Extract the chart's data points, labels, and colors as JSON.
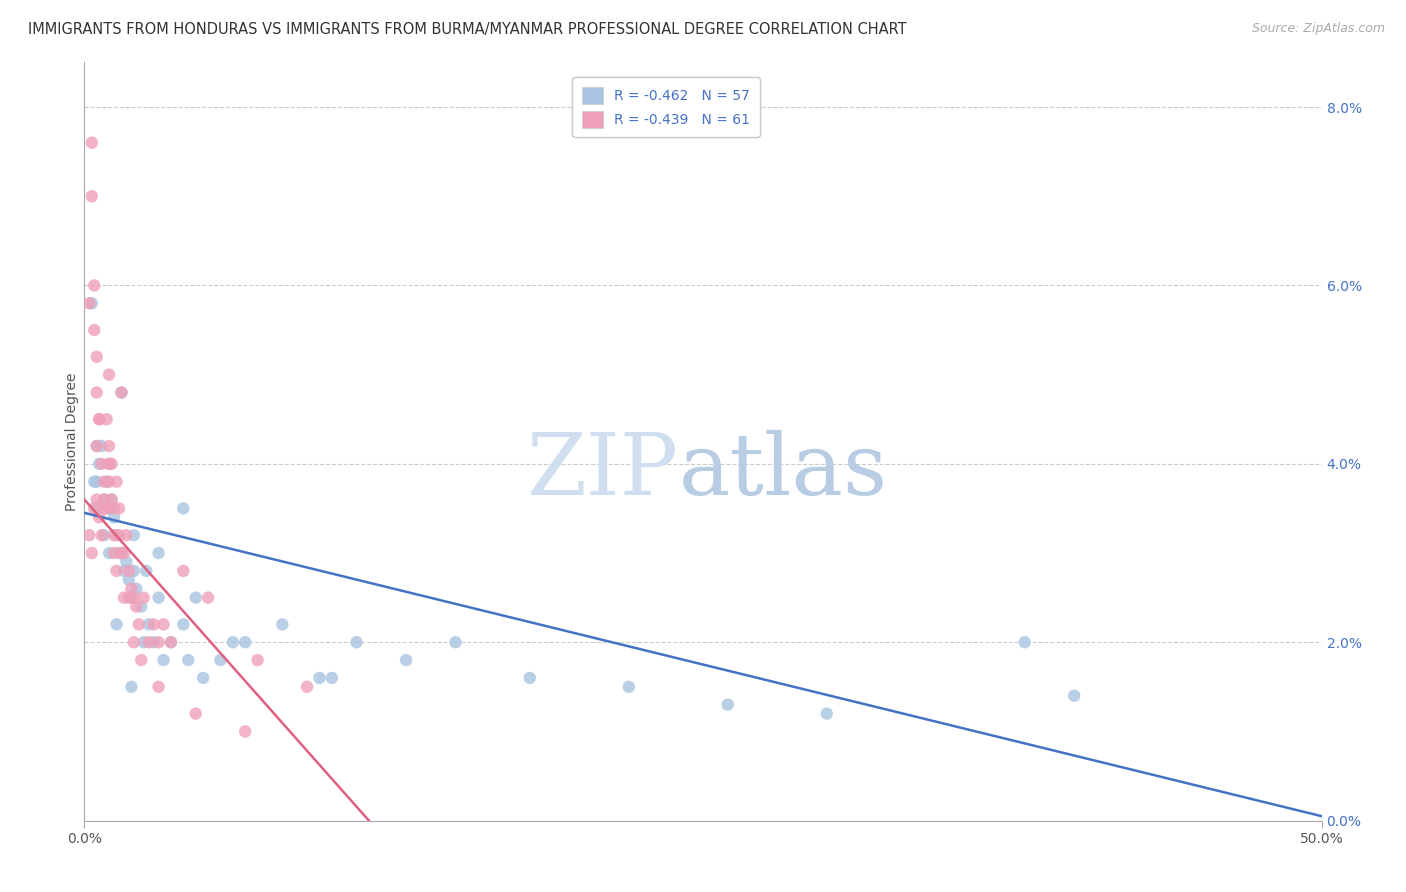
{
  "title": "IMMIGRANTS FROM HONDURAS VS IMMIGRANTS FROM BURMA/MYANMAR PROFESSIONAL DEGREE CORRELATION CHART",
  "source": "Source: ZipAtlas.com",
  "ylabel": "Professional Degree",
  "right_yticks": [
    "0.0%",
    "2.0%",
    "4.0%",
    "6.0%",
    "8.0%"
  ],
  "right_ytick_vals": [
    0.0,
    2.0,
    4.0,
    6.0,
    8.0
  ],
  "legend_blue_r": "R = -0.462",
  "legend_blue_n": "N = 57",
  "legend_pink_r": "R = -0.439",
  "legend_pink_n": "N = 61",
  "blue_color": "#a8c4e0",
  "pink_color": "#f0a0b8",
  "blue_line_color": "#4472c4",
  "pink_line_color": "#e06080",
  "legend_text_color": "#4472c4",
  "right_axis_color": "#4472c4",
  "background_color": "#ffffff",
  "watermark_zip_color": "#d0dff0",
  "watermark_atlas_color": "#b8cce4",
  "xlim": [
    0.0,
    50.0
  ],
  "ylim": [
    0.0,
    8.5
  ],
  "blue_scatter_x": [
    0.5,
    0.5,
    0.5,
    0.6,
    0.7,
    0.8,
    0.8,
    0.9,
    1.0,
    1.0,
    1.0,
    1.1,
    1.2,
    1.3,
    1.4,
    1.5,
    1.5,
    1.6,
    1.7,
    1.8,
    1.9,
    2.0,
    2.0,
    2.1,
    2.3,
    2.5,
    2.6,
    2.8,
    3.0,
    3.2,
    3.5,
    4.0,
    4.2,
    4.5,
    4.8,
    5.5,
    6.5,
    8.0,
    9.5,
    11.0,
    13.0,
    15.0,
    18.0,
    22.0,
    26.0,
    30.0,
    38.0,
    0.3,
    0.4,
    1.3,
    1.9,
    2.4,
    3.0,
    4.0,
    6.0,
    10.0,
    40.0
  ],
  "blue_scatter_y": [
    4.2,
    3.8,
    3.5,
    4.0,
    4.2,
    3.6,
    3.2,
    3.8,
    4.0,
    3.5,
    3.0,
    3.6,
    3.4,
    3.2,
    3.0,
    4.8,
    3.0,
    2.8,
    2.9,
    2.7,
    2.5,
    3.2,
    2.8,
    2.6,
    2.4,
    2.8,
    2.2,
    2.0,
    2.5,
    1.8,
    2.0,
    2.2,
    1.8,
    2.5,
    1.6,
    1.8,
    2.0,
    2.2,
    1.6,
    2.0,
    1.8,
    2.0,
    1.6,
    1.5,
    1.3,
    1.2,
    2.0,
    5.8,
    3.8,
    2.2,
    1.5,
    2.0,
    3.0,
    3.5,
    2.0,
    1.6,
    1.4
  ],
  "pink_scatter_x": [
    0.2,
    0.3,
    0.3,
    0.4,
    0.4,
    0.5,
    0.5,
    0.5,
    0.6,
    0.6,
    0.7,
    0.7,
    0.8,
    0.8,
    0.9,
    0.9,
    1.0,
    1.0,
    1.0,
    1.1,
    1.1,
    1.2,
    1.2,
    1.3,
    1.3,
    1.4,
    1.5,
    1.5,
    1.6,
    1.7,
    1.8,
    1.9,
    2.0,
    2.1,
    2.2,
    2.4,
    2.6,
    2.8,
    3.0,
    3.2,
    3.5,
    4.0,
    5.0,
    7.0,
    9.0,
    0.2,
    0.3,
    0.4,
    0.5,
    0.6,
    0.8,
    1.0,
    1.2,
    1.4,
    1.6,
    1.8,
    2.0,
    2.3,
    3.0,
    4.5,
    6.5
  ],
  "pink_scatter_y": [
    5.8,
    7.6,
    7.0,
    6.0,
    5.5,
    5.2,
    4.8,
    3.6,
    4.5,
    3.4,
    4.0,
    3.2,
    3.8,
    3.5,
    4.5,
    3.5,
    5.0,
    4.2,
    3.8,
    4.0,
    3.6,
    3.5,
    3.0,
    3.8,
    2.8,
    3.2,
    4.8,
    3.0,
    3.0,
    3.2,
    2.8,
    2.6,
    2.5,
    2.4,
    2.2,
    2.5,
    2.0,
    2.2,
    2.0,
    2.2,
    2.0,
    2.8,
    2.5,
    1.8,
    1.5,
    3.2,
    3.0,
    3.5,
    4.2,
    4.5,
    3.6,
    4.0,
    3.2,
    3.5,
    2.5,
    2.5,
    2.0,
    1.8,
    1.5,
    1.2,
    1.0
  ],
  "blue_trendline_x": [
    0.0,
    50.0
  ],
  "blue_trendline_y": [
    3.45,
    0.05
  ],
  "pink_trendline_x": [
    0.0,
    11.5
  ],
  "pink_trendline_y": [
    3.6,
    0.0
  ],
  "title_fontsize": 10.5,
  "source_fontsize": 9,
  "label_fontsize": 10,
  "legend_fontsize": 10,
  "tick_fontsize": 10,
  "marker_size": 80
}
